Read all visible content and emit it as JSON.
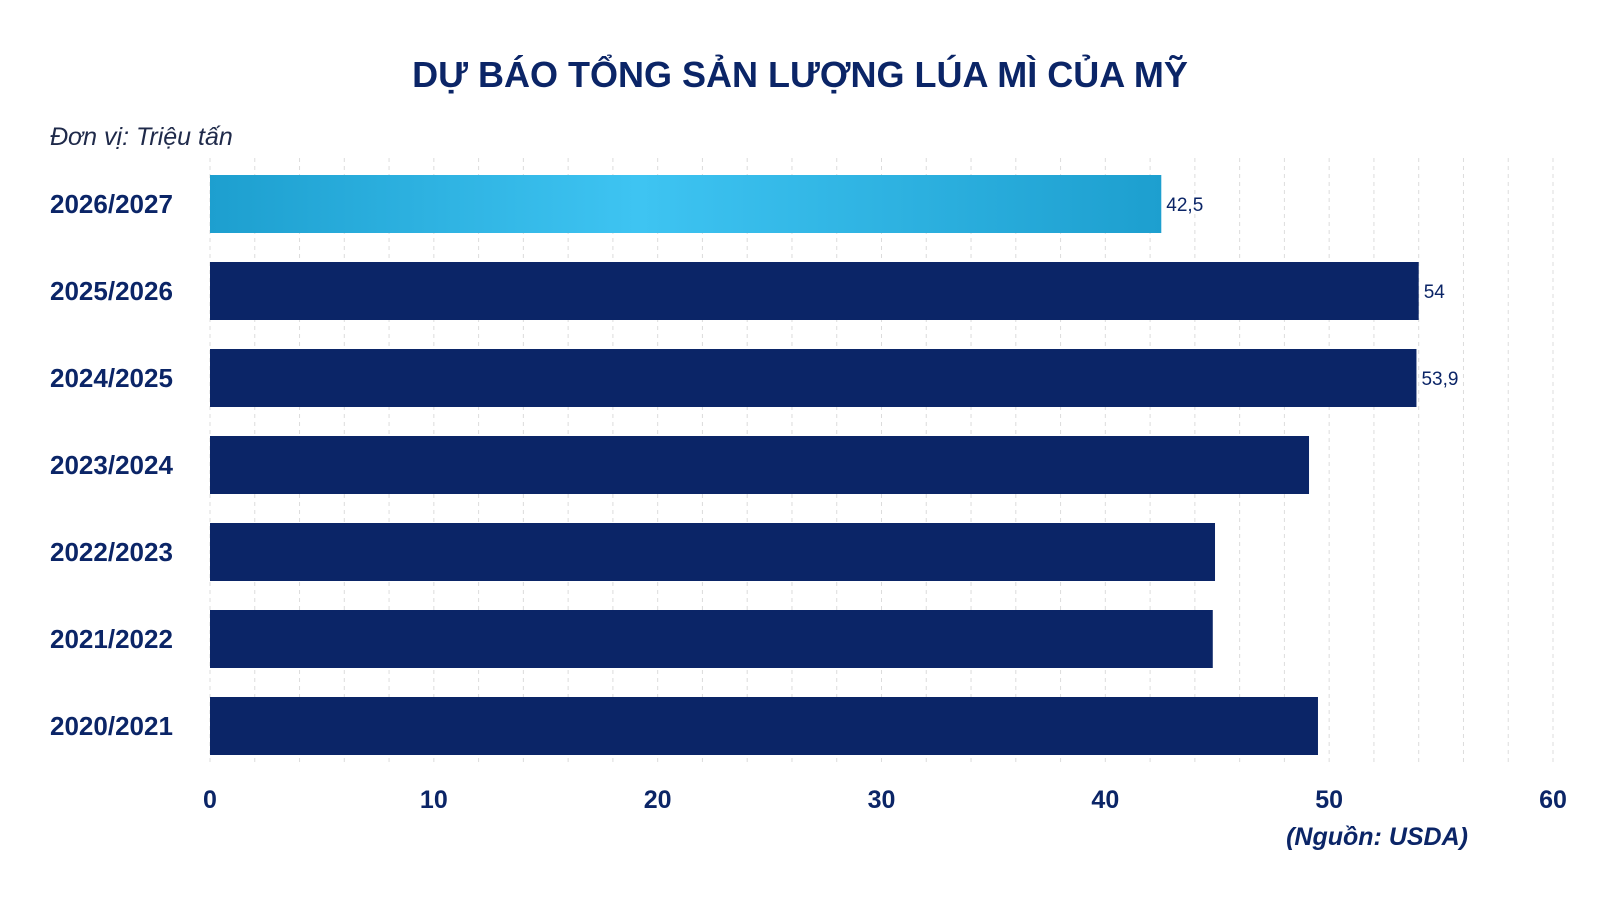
{
  "chart_data": {
    "type": "bar",
    "orientation": "horizontal",
    "title": "DỰ BÁO TỔNG SẢN LƯỢNG LÚA MÌ CỦA MỸ",
    "unit_note": "Đơn vị: Triệu tấn",
    "source": "(Nguồn: USDA)",
    "categories": [
      "2026/2027",
      "2025/2026",
      "2024/2025",
      "2023/2024",
      "2022/2023",
      "2021/2022",
      "2020/2021"
    ],
    "values": [
      42.5,
      54,
      53.9,
      49.1,
      44.9,
      44.8,
      49.5
    ],
    "data_labels": [
      "42,5",
      "54",
      "53,9",
      "",
      "",
      "",
      ""
    ],
    "xlim": [
      0,
      60
    ],
    "x_ticks": [
      "0",
      "10",
      "20",
      "30",
      "40",
      "50",
      "60"
    ],
    "grid": true,
    "highlight_index": 0,
    "colors": {
      "bar": "#0b2567",
      "highlight_dark": "#1d9fcf",
      "highlight_light": "#3ec4f2",
      "text": "#0b2567"
    }
  }
}
